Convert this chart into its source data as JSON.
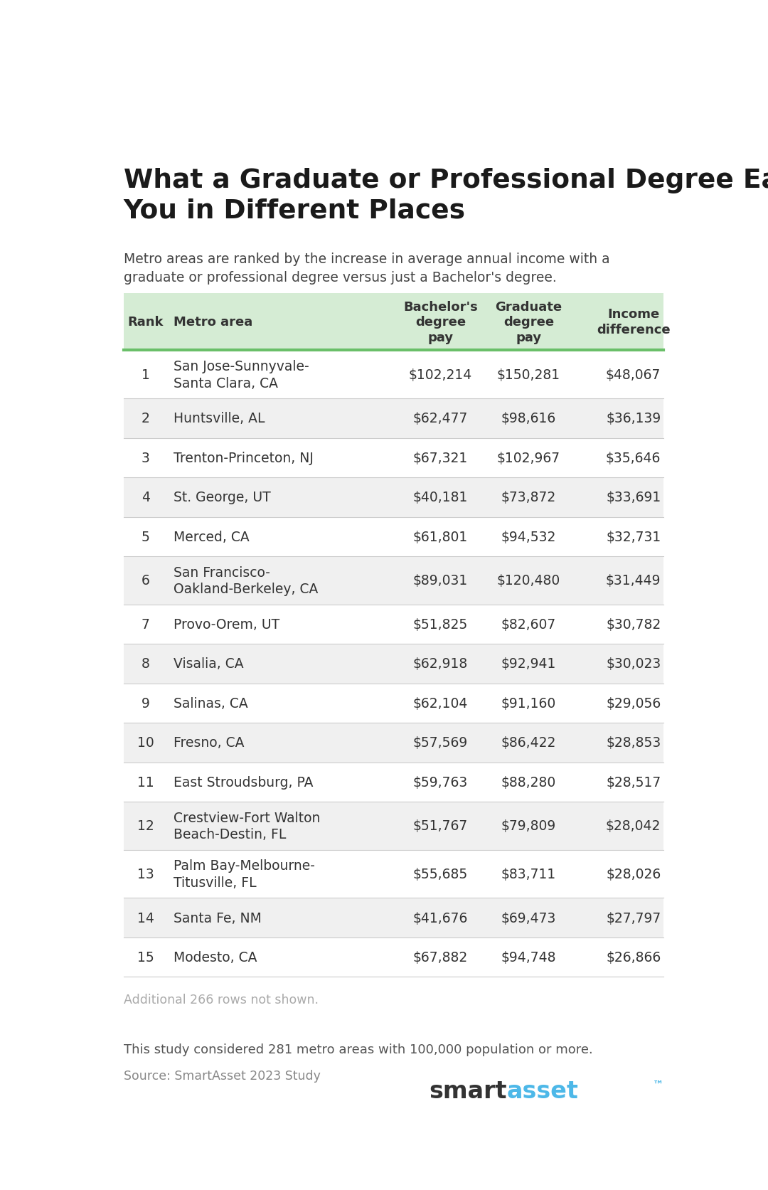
{
  "title": "What a Graduate or Professional Degree Earns\nYou in Different Places",
  "subtitle": "Metro areas are ranked by the increase in average annual income with a\ngraduate or professional degree versus just a Bachelor's degree.",
  "col_headers": [
    "Rank",
    "Metro area",
    "Bachelor's\ndegree\npay",
    "Graduate\ndegree\npay",
    "Income\ndifference"
  ],
  "rows": [
    {
      "rank": "1",
      "metro": "San Jose-Sunnyvale-\nSanta Clara, CA",
      "bach": "$102,214",
      "grad": "$150,281",
      "diff": "$48,067"
    },
    {
      "rank": "2",
      "metro": "Huntsville, AL",
      "bach": "$62,477",
      "grad": "$98,616",
      "diff": "$36,139"
    },
    {
      "rank": "3",
      "metro": "Trenton-Princeton, NJ",
      "bach": "$67,321",
      "grad": "$102,967",
      "diff": "$35,646"
    },
    {
      "rank": "4",
      "metro": "St. George, UT",
      "bach": "$40,181",
      "grad": "$73,872",
      "diff": "$33,691"
    },
    {
      "rank": "5",
      "metro": "Merced, CA",
      "bach": "$61,801",
      "grad": "$94,532",
      "diff": "$32,731"
    },
    {
      "rank": "6",
      "metro": "San Francisco-\nOakland-Berkeley, CA",
      "bach": "$89,031",
      "grad": "$120,480",
      "diff": "$31,449"
    },
    {
      "rank": "7",
      "metro": "Provo-Orem, UT",
      "bach": "$51,825",
      "grad": "$82,607",
      "diff": "$30,782"
    },
    {
      "rank": "8",
      "metro": "Visalia, CA",
      "bach": "$62,918",
      "grad": "$92,941",
      "diff": "$30,023"
    },
    {
      "rank": "9",
      "metro": "Salinas, CA",
      "bach": "$62,104",
      "grad": "$91,160",
      "diff": "$29,056"
    },
    {
      "rank": "10",
      "metro": "Fresno, CA",
      "bach": "$57,569",
      "grad": "$86,422",
      "diff": "$28,853"
    },
    {
      "rank": "11",
      "metro": "East Stroudsburg, PA",
      "bach": "$59,763",
      "grad": "$88,280",
      "diff": "$28,517"
    },
    {
      "rank": "12",
      "metro": "Crestview-Fort Walton\nBeach-Destin, FL",
      "bach": "$51,767",
      "grad": "$79,809",
      "diff": "$28,042"
    },
    {
      "rank": "13",
      "metro": "Palm Bay-Melbourne-\nTitusville, FL",
      "bach": "$55,685",
      "grad": "$83,711",
      "diff": "$28,026"
    },
    {
      "rank": "14",
      "metro": "Santa Fe, NM",
      "bach": "$41,676",
      "grad": "$69,473",
      "diff": "$27,797"
    },
    {
      "rank": "15",
      "metro": "Modesto, CA",
      "bach": "$67,882",
      "grad": "$94,748",
      "diff": "$26,866"
    }
  ],
  "footer_note": "Additional 266 rows not shown.",
  "footnote1": "This study considered 281 metro areas with 100,000 population or more.",
  "footnote2": "Source: SmartAsset 2023 Study",
  "header_bg": "#d5ecd4",
  "odd_row_bg": "#ffffff",
  "even_row_bg": "#f0f0f0",
  "header_border_color": "#6abf69",
  "text_color": "#333333",
  "light_text_color": "#aaaaaa",
  "title_color": "#1a1a1a",
  "smartasset_smart_color": "#333333",
  "smartasset_asset_color": "#4db8e8"
}
